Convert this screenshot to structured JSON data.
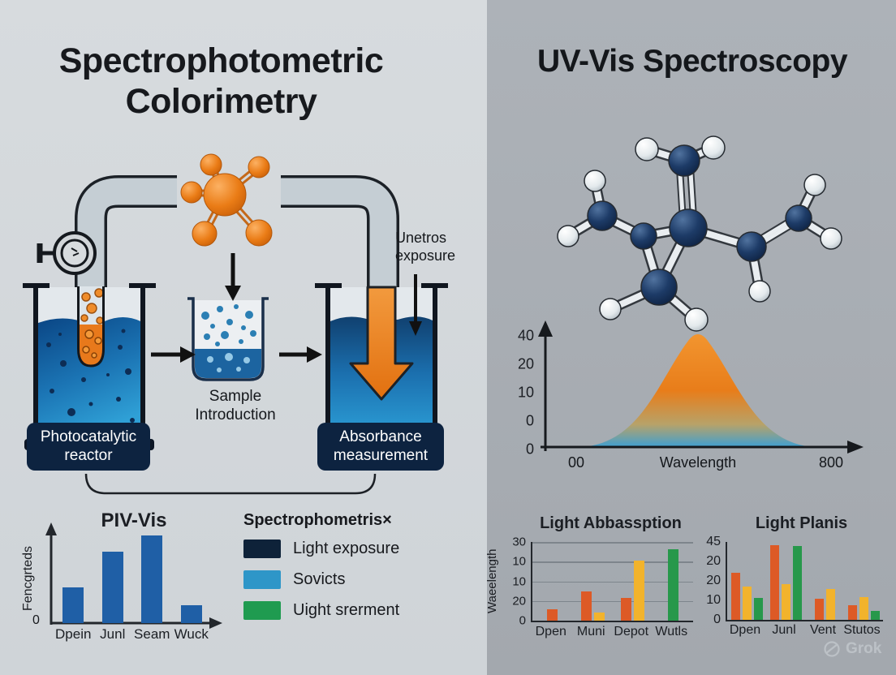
{
  "left": {
    "title": "Spectrophotometric Colorimetry",
    "exposure_label": "Unetros exposure",
    "sample_label": "Sample Introduction",
    "reactor_label": "Photocatalytic reactor",
    "absorbance_label": "Absorbance measurement",
    "chart": {
      "type": "bar",
      "title": "PIV-Vis",
      "ylabel": "Fencgrteds",
      "y_origin_label": "0",
      "categories": [
        "Dpein",
        "Junl",
        "Seam",
        "Wuck"
      ],
      "values": [
        40,
        80,
        98,
        20
      ],
      "ylim": [
        0,
        100
      ],
      "bar_color": "#1f5fa6"
    },
    "legend": {
      "title": "Spectrophometris×",
      "items": [
        {
          "label": "Light exposure",
          "color": "#0e2239"
        },
        {
          "label": "Sovicts",
          "color": "#2e96c8"
        },
        {
          "label": "Uight srerment",
          "color": "#1f9b50"
        }
      ]
    }
  },
  "right": {
    "title": "UV-Vis Spectroscopy",
    "spectrum": {
      "type": "area",
      "yticks": [
        "40",
        "20",
        "10",
        "0",
        "0"
      ],
      "x_start_label": "00",
      "xlabel": "Wavelength",
      "x_end_label": "800",
      "peak_colors": {
        "top": "#ef8b1f",
        "bottom": "#3fa0d2"
      }
    },
    "chart_absorption": {
      "type": "bar",
      "title": "Light Abbassption",
      "ylabel": "Waeelength",
      "yticks": [
        "30",
        "10",
        "10",
        "20",
        "0"
      ],
      "categories": [
        "Dpen",
        "Muni",
        "Depot",
        "Wutls"
      ],
      "series": [
        {
          "name": "red",
          "color": "#dd5a26",
          "values": [
            14,
            37,
            29,
            0
          ]
        },
        {
          "name": "yellow",
          "color": "#f2b32c",
          "values": [
            0,
            10,
            76,
            0
          ]
        },
        {
          "name": "green",
          "color": "#27984b",
          "values": [
            0,
            0,
            0,
            91
          ]
        }
      ],
      "ylim": [
        0,
        100
      ]
    },
    "chart_plans": {
      "type": "bar",
      "title": "Light Planis",
      "yticks": [
        "45",
        "20",
        "20",
        "10",
        "0"
      ],
      "categories": [
        "Dpen",
        "Junl",
        "Vent",
        "Stutos"
      ],
      "series": [
        {
          "name": "red",
          "color": "#dd5a26",
          "values": [
            60,
            96,
            27,
            19
          ]
        },
        {
          "name": "yellow",
          "color": "#f2b32c",
          "values": [
            43,
            46,
            40,
            29
          ]
        },
        {
          "name": "green",
          "color": "#27984b",
          "values": [
            28,
            95,
            0,
            11
          ]
        }
      ],
      "ylim": [
        0,
        100
      ]
    },
    "watermark": "Grok"
  },
  "colors": {
    "panel_left_bg": "#d3d7da",
    "panel_right_bg": "#a8adb3",
    "label_box": "#0d2340",
    "pipe_fill": "#c5ced4",
    "orange": "#e87a1c",
    "liquid_dark": "#0a4584",
    "liquid_light": "#2fa0d6"
  }
}
